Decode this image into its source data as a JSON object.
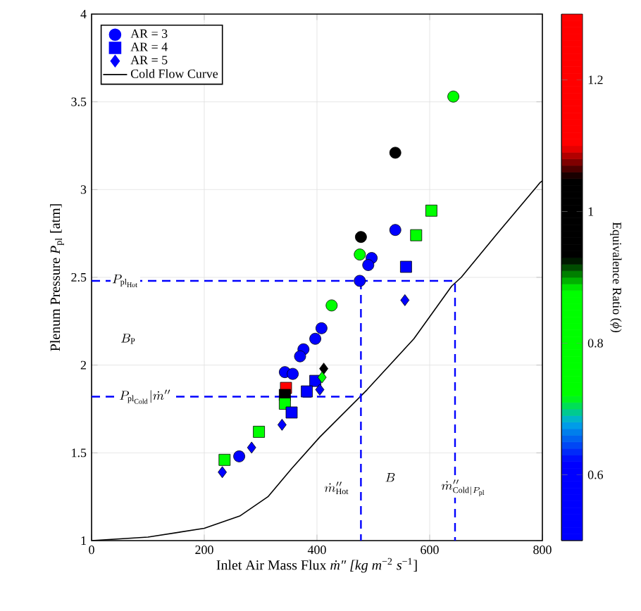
{
  "chart_data": {
    "type": "scatter",
    "xlabel": "Inlet Air Mass Flux *ṁ″ [kg m*$^{−2}$ *s*$^{−1}$]",
    "ylabel": "Plenum Pressure *P*$_{pl}$ [atm]",
    "clabel": "Equivalence Ratio (*ϕ*)",
    "xlim": [
      0,
      800
    ],
    "xticks": [
      0,
      200,
      400,
      600,
      800
    ],
    "ylim": [
      1,
      4
    ],
    "yticks": [
      1,
      1.5,
      2,
      2.5,
      3,
      3.5,
      4
    ],
    "clim": [
      0.5,
      1.3
    ],
    "cticks": [
      0.6,
      0.8,
      1,
      1.2
    ],
    "grid": true,
    "legend": "top left",
    "series": [
      {
        "name": "AR = 3",
        "marker": "circle",
        "x": [
          642,
          539,
          539,
          478,
          476,
          497,
          491,
          476,
          426,
          408,
          397,
          376,
          370,
          343,
          357,
          262
        ],
        "values": [
          3.53,
          3.21,
          2.77,
          2.73,
          2.63,
          2.61,
          2.57,
          2.48,
          2.34,
          2.21,
          2.15,
          2.09,
          2.05,
          1.96,
          1.95,
          1.48
        ],
        "colors": [
          "#00ff00",
          "#000000",
          "#0000ff",
          "#000000",
          "#00ff00",
          "#0000ff",
          "#0000ff",
          "#0000ff",
          "#00ff00",
          "#0000ff",
          "#0000ff",
          "#0000ff",
          "#0000ff",
          "#0000ff",
          "#0000ff",
          "#0000ff"
        ]
      },
      {
        "name": "AR = 4",
        "marker": "square",
        "x": [
          603,
          576,
          558,
          397,
          382,
          345,
          343,
          343,
          355,
          297,
          236
        ],
        "values": [
          2.88,
          2.74,
          2.56,
          1.91,
          1.85,
          1.87,
          1.83,
          1.78,
          1.73,
          1.62,
          1.46
        ],
        "colors": [
          "#00ff00",
          "#00ff00",
          "#0000ff",
          "#0000ff",
          "#0000ff",
          "#ff0000",
          "#000000",
          "#00ff00",
          "#0000ff",
          "#00ff00",
          "#00ff00"
        ]
      },
      {
        "name": "AR = 5",
        "marker": "diamond",
        "x": [
          556,
          412,
          409,
          405,
          338,
          284,
          232
        ],
        "values": [
          2.37,
          1.98,
          1.93,
          1.86,
          1.66,
          1.53,
          1.39
        ],
        "colors": [
          "#0000ff",
          "#000000",
          "#00ff00",
          "#0000ff",
          "#0000ff",
          "#0000ff",
          "#0000ff"
        ]
      },
      {
        "name": "Cold Flow Curve",
        "type": "line",
        "marker": "none",
        "line_style": "solid",
        "color": "#000000",
        "x": [
          0,
          100,
          200,
          263,
          313,
          355,
          405,
          489,
          572,
          639,
          656,
          720,
          796,
          800
        ],
        "values": [
          1.0,
          1.02,
          1.07,
          1.14,
          1.25,
          1.41,
          1.59,
          1.86,
          2.15,
          2.45,
          2.5,
          2.75,
          3.04,
          3.05
        ]
      },
      {
        "type": "line",
        "marker": "none",
        "line_style": "dashed",
        "color": "#0000ff",
        "x": [
          0,
          645,
          645
        ],
        "values": [
          2.48,
          2.48,
          1
        ]
      },
      {
        "type": "line",
        "marker": "none",
        "line_style": "dashed",
        "color": "#0000ff",
        "x": [
          0,
          478
        ],
        "values": [
          1.82,
          1.82
        ]
      },
      {
        "type": "line",
        "marker": "none",
        "line_style": "dashed",
        "color": "#0000ff",
        "x": [
          478,
          478
        ],
        "values": [
          2.48,
          1
        ]
      }
    ],
    "annotations": [
      {
        "text": "P_{\\mathrm{pl}_{\\mathrm{Hot}}}",
        "x": 60,
        "y": 2.48
      },
      {
        "text": "B_{\\mathrm{P}}",
        "x": 65,
        "y": 2.15
      },
      {
        "text": "P_{\\mathrm{pl}_{\\mathrm{Cold}}}|\\dot{m}''",
        "x": 95,
        "y": 1.82
      },
      {
        "text": "\\dot{m}''_{\\mathrm{Hot}}",
        "x": 435,
        "y": 1.3
      },
      {
        "text": "B",
        "x": 530,
        "y": 1.36
      },
      {
        "text": "\\dot{m}''_{\\mathrm{Cold}|P_{\\mathrm{pl}}}",
        "x": 660,
        "y": 1.3
      }
    ]
  }
}
